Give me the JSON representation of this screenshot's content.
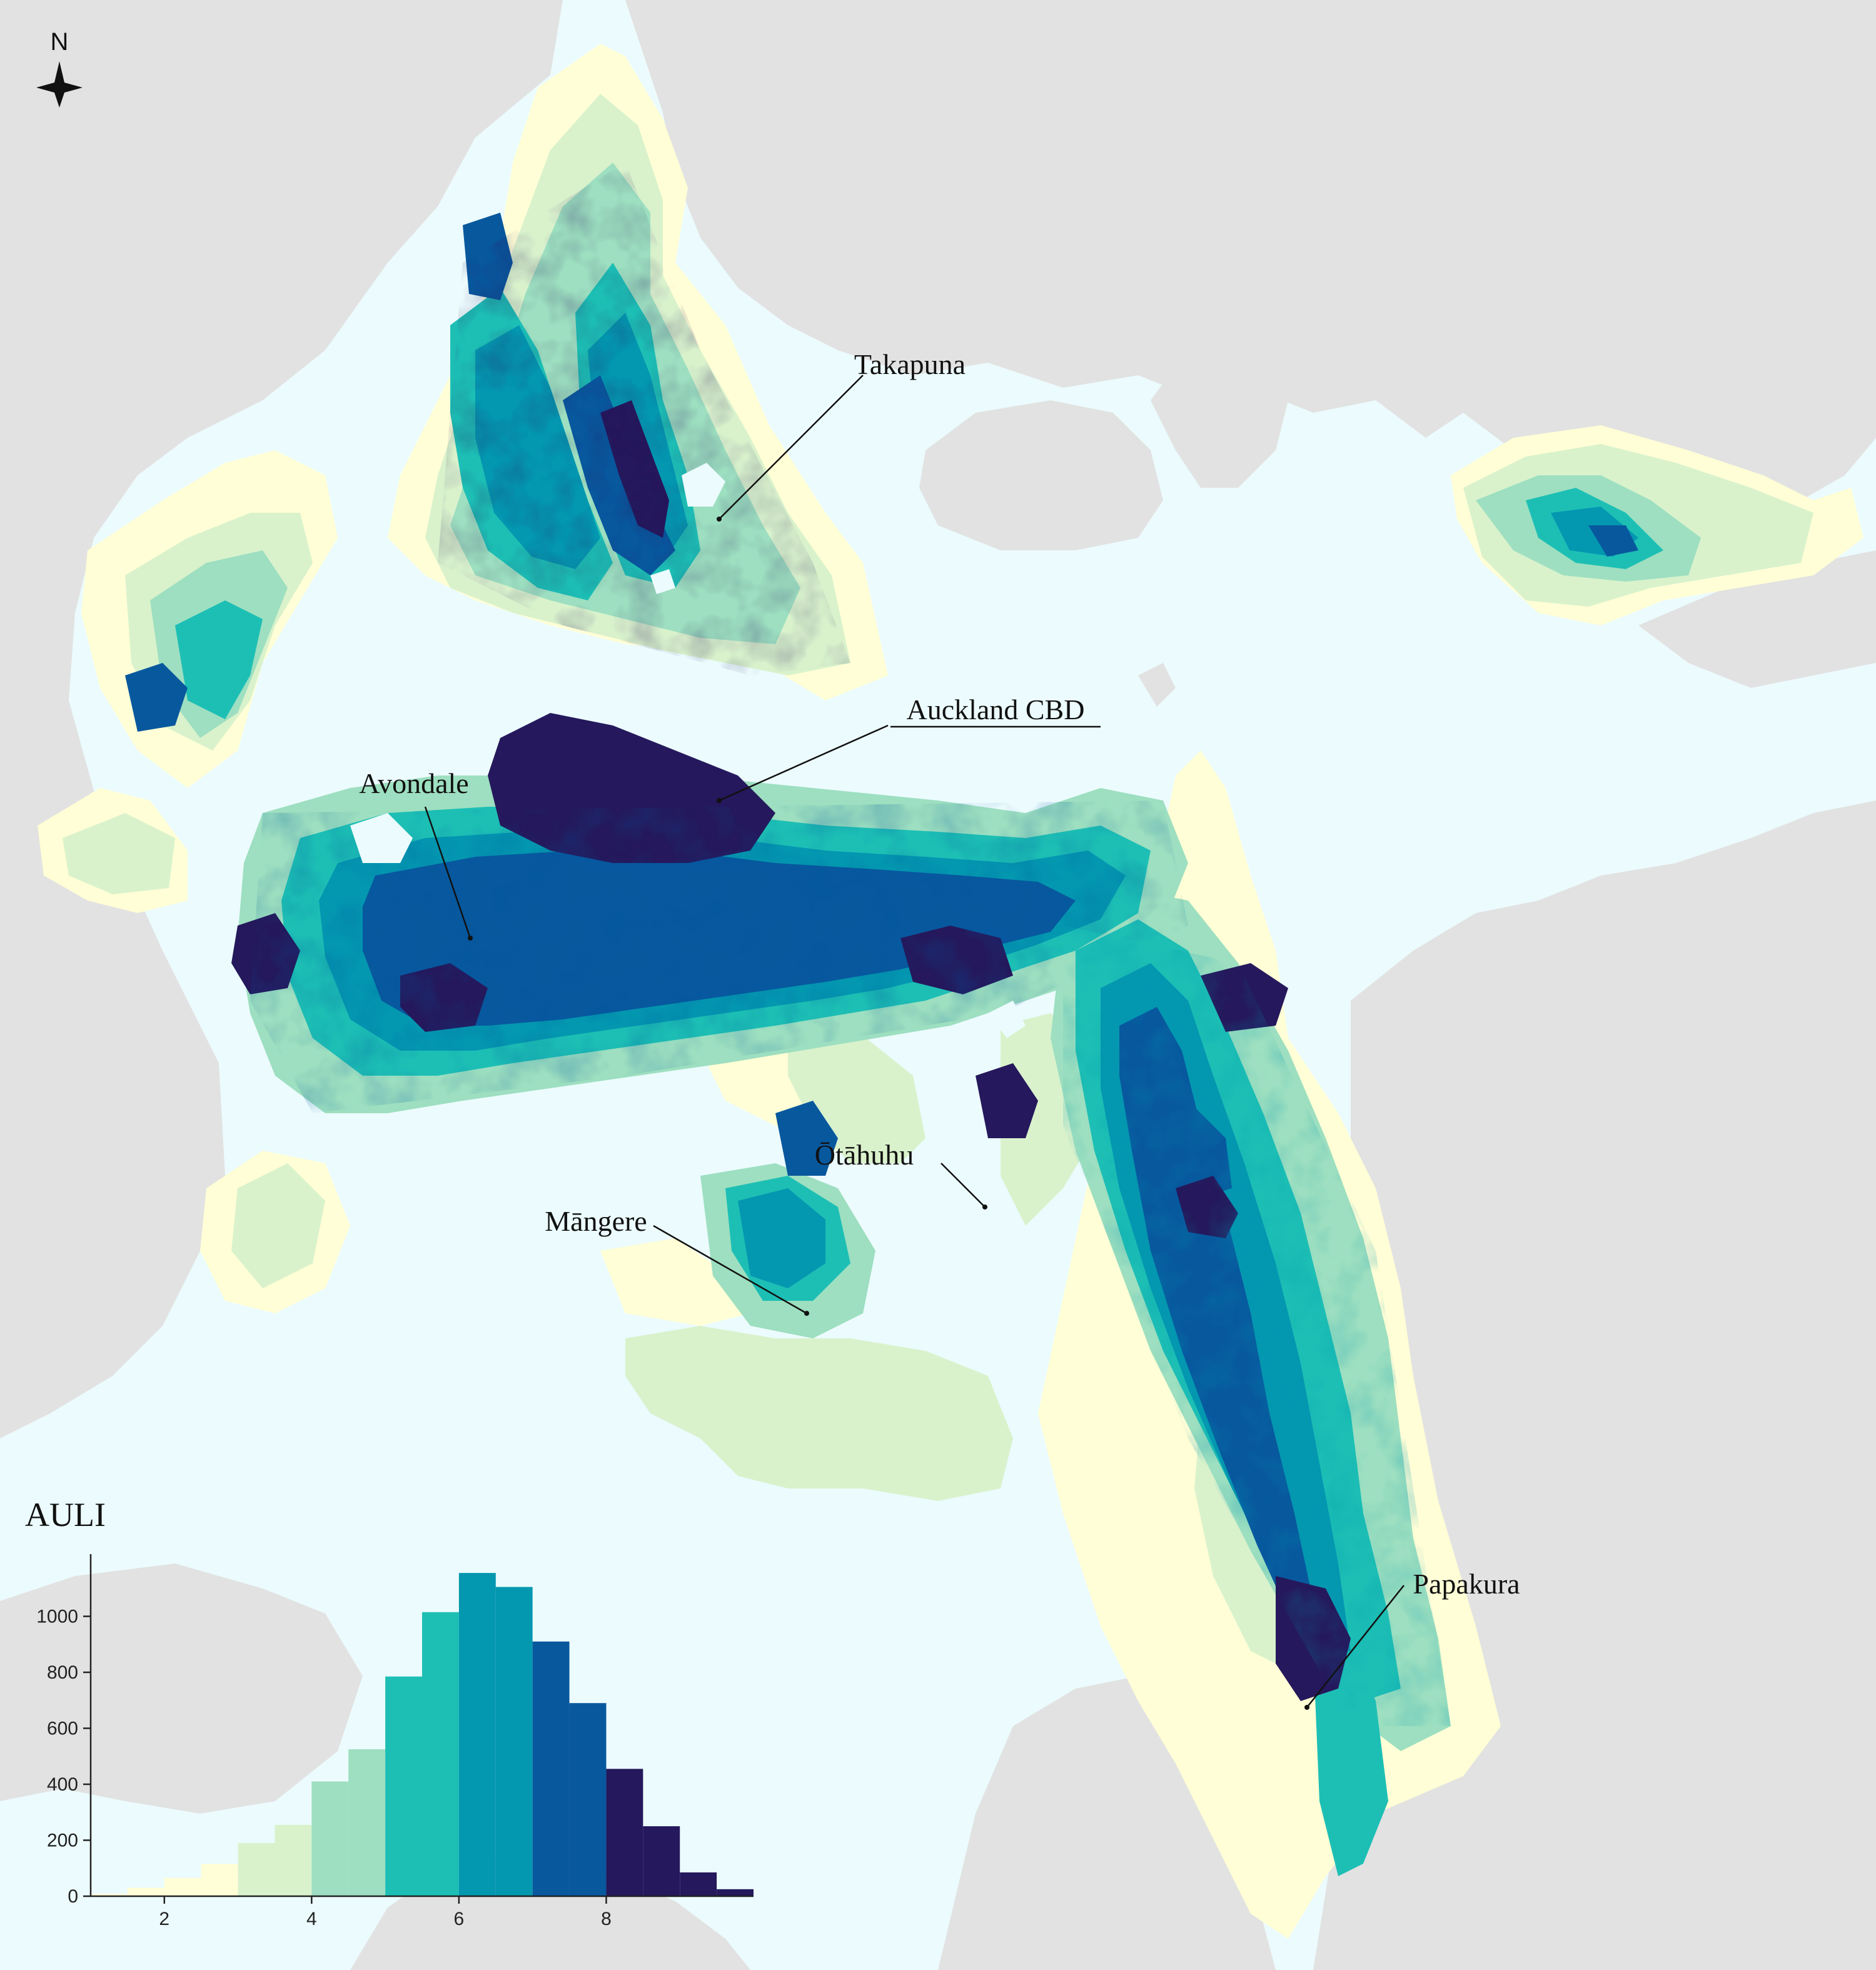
{
  "north_arrow": {
    "label": "N"
  },
  "colors": {
    "sea": "#ecfbfd",
    "land": "#e2e2e2",
    "scale": [
      "#fffed6",
      "#d9f2cc",
      "#9ddfc0",
      "#1dbfb5",
      "#0497b0",
      "#08589e",
      "#25185c"
    ]
  },
  "places": [
    {
      "id": "takapuna",
      "label": "Takapuna",
      "underline": false
    },
    {
      "id": "auckland-cbd",
      "label": "Auckland CBD",
      "underline": true
    },
    {
      "id": "avondale",
      "label": "Avondale",
      "underline": false
    },
    {
      "id": "otahuhu",
      "label": "Ōtāhuhu",
      "underline": false
    },
    {
      "id": "mangere",
      "label": "Māngere",
      "underline": false
    },
    {
      "id": "papakura",
      "label": "Papakura",
      "underline": false
    }
  ],
  "chart_data": {
    "type": "bar",
    "title": "AULI",
    "xlabel": "",
    "ylabel": "",
    "xlim": [
      1,
      10
    ],
    "ylim": [
      0,
      1200
    ],
    "xticks": [
      2,
      4,
      6,
      8
    ],
    "yticks": [
      0,
      200,
      400,
      600,
      800,
      1000
    ],
    "bin_width": 0.5,
    "bins": [
      {
        "x": 1.0,
        "count": 8,
        "color": "#fffed6"
      },
      {
        "x": 1.5,
        "count": 30,
        "color": "#fffed6"
      },
      {
        "x": 2.0,
        "count": 65,
        "color": "#fffed6"
      },
      {
        "x": 2.5,
        "count": 115,
        "color": "#fffed6"
      },
      {
        "x": 3.0,
        "count": 190,
        "color": "#d9f2cc"
      },
      {
        "x": 3.5,
        "count": 255,
        "color": "#d9f2cc"
      },
      {
        "x": 4.0,
        "count": 410,
        "color": "#9ddfc0"
      },
      {
        "x": 4.5,
        "count": 525,
        "color": "#9ddfc0"
      },
      {
        "x": 5.0,
        "count": 785,
        "color": "#1dbfb5"
      },
      {
        "x": 5.5,
        "count": 1015,
        "color": "#1dbfb5"
      },
      {
        "x": 6.0,
        "count": 1155,
        "color": "#0497b0"
      },
      {
        "x": 6.5,
        "count": 1105,
        "color": "#0497b0"
      },
      {
        "x": 7.0,
        "count": 910,
        "color": "#08589e"
      },
      {
        "x": 7.5,
        "count": 690,
        "color": "#08589e"
      },
      {
        "x": 8.0,
        "count": 455,
        "color": "#25185c"
      },
      {
        "x": 8.5,
        "count": 250,
        "color": "#25185c"
      },
      {
        "x": 9.0,
        "count": 85,
        "color": "#25185c"
      },
      {
        "x": 9.5,
        "count": 25,
        "color": "#25185c"
      }
    ]
  }
}
